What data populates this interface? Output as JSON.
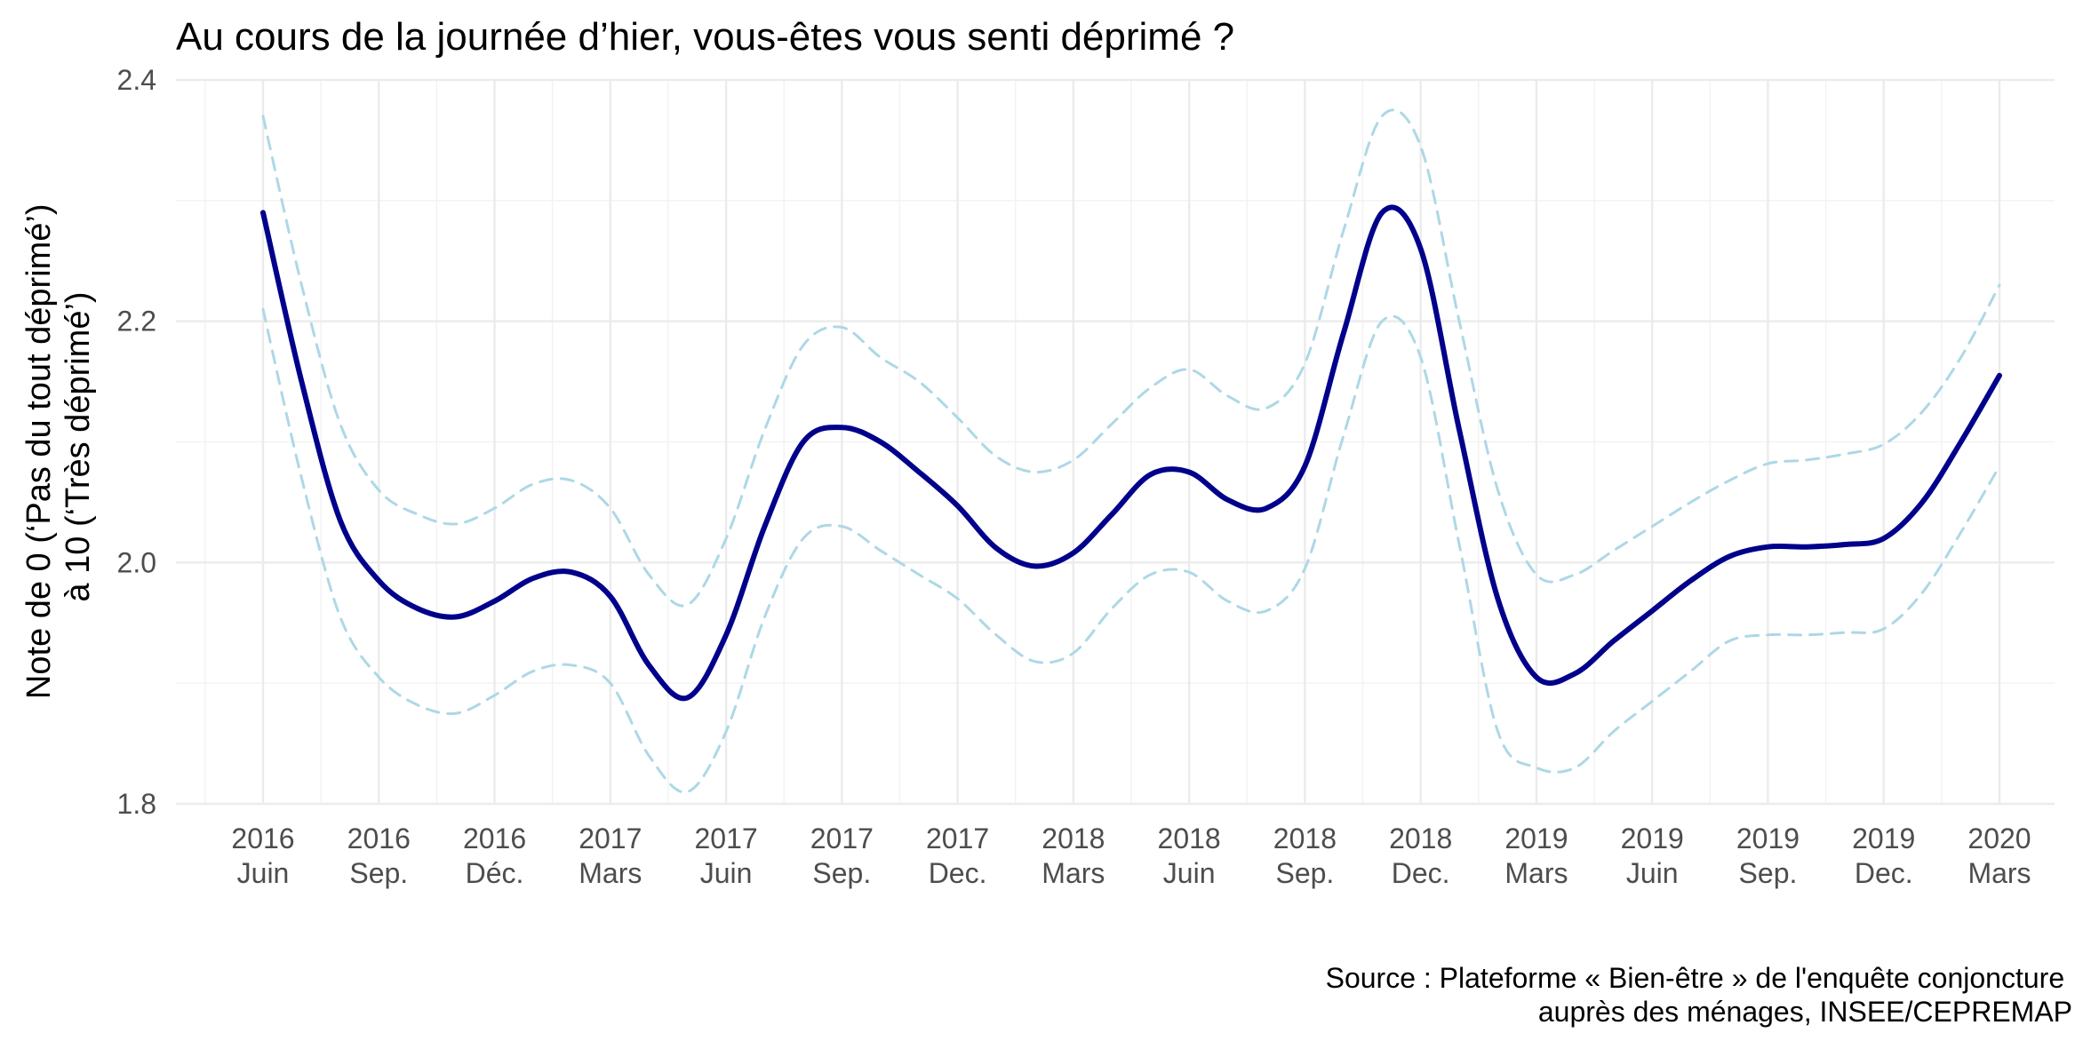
{
  "chart_data": {
    "type": "line",
    "title": "Au cours de la journée d’hier, vous-êtes vous senti déprimé ?",
    "ylabel_lines": [
      "Note de 0 (‘Pas du tout déprimé’)",
      "à 10 (‘Très déprimé’)"
    ],
    "ylim": [
      1.8,
      2.4
    ],
    "yticks": [
      1.8,
      2.0,
      2.2,
      2.4
    ],
    "ytick_labels": [
      "1.8",
      "2.0",
      "2.2",
      "2.4"
    ],
    "x_range": [
      "2016-06",
      "2020-03"
    ],
    "xticks": [
      {
        "year": "2016",
        "month": "Juin"
      },
      {
        "year": "2016",
        "month": "Sep."
      },
      {
        "year": "2016",
        "month": "Déc."
      },
      {
        "year": "2017",
        "month": "Mars"
      },
      {
        "year": "2017",
        "month": "Juin"
      },
      {
        "year": "2017",
        "month": "Sep."
      },
      {
        "year": "2017",
        "month": "Dec."
      },
      {
        "year": "2018",
        "month": "Mars"
      },
      {
        "year": "2018",
        "month": "Juin"
      },
      {
        "year": "2018",
        "month": "Sep."
      },
      {
        "year": "2018",
        "month": "Dec."
      },
      {
        "year": "2019",
        "month": "Mars"
      },
      {
        "year": "2019",
        "month": "Juin"
      },
      {
        "year": "2019",
        "month": "Sep."
      },
      {
        "year": "2019",
        "month": "Dec."
      },
      {
        "year": "2020",
        "month": "Mars"
      }
    ],
    "grid": true,
    "series": [
      {
        "role": "estimate",
        "color": "#00008b",
        "style": "solid",
        "x": [
          "2016-06",
          "2016-07",
          "2016-08",
          "2016-09",
          "2016-10",
          "2016-11",
          "2016-12",
          "2017-01",
          "2017-02",
          "2017-03",
          "2017-04",
          "2017-05",
          "2017-06",
          "2017-07",
          "2017-08",
          "2017-09",
          "2017-10",
          "2017-11",
          "2017-12",
          "2018-01",
          "2018-02",
          "2018-03",
          "2018-04",
          "2018-05",
          "2018-06",
          "2018-07",
          "2018-08",
          "2018-09",
          "2018-10",
          "2018-11",
          "2018-12",
          "2019-01",
          "2019-02",
          "2019-03",
          "2019-04",
          "2019-05",
          "2019-06",
          "2019-07",
          "2019-08",
          "2019-09",
          "2019-10",
          "2019-11",
          "2019-12",
          "2020-01",
          "2020-02",
          "2020-03"
        ],
        "y": [
          2.29,
          2.15,
          2.035,
          1.985,
          1.962,
          1.955,
          1.968,
          1.987,
          1.992,
          1.972,
          1.915,
          1.888,
          1.94,
          2.03,
          2.1,
          2.112,
          2.1,
          2.075,
          2.047,
          2.012,
          1.997,
          2.008,
          2.04,
          2.073,
          2.075,
          2.052,
          2.045,
          2.08,
          2.19,
          2.29,
          2.26,
          2.11,
          1.97,
          1.905,
          1.908,
          1.935,
          1.96,
          1.985,
          2.005,
          2.013,
          2.013,
          2.015,
          2.02,
          2.05,
          2.1,
          2.155
        ]
      },
      {
        "role": "upper-bound",
        "color": "#add8e6",
        "style": "dashed",
        "x": [
          "2016-06",
          "2016-07",
          "2016-08",
          "2016-09",
          "2016-10",
          "2016-11",
          "2016-12",
          "2017-01",
          "2017-02",
          "2017-03",
          "2017-04",
          "2017-05",
          "2017-06",
          "2017-07",
          "2017-08",
          "2017-09",
          "2017-10",
          "2017-11",
          "2017-12",
          "2018-01",
          "2018-02",
          "2018-03",
          "2018-04",
          "2018-05",
          "2018-06",
          "2018-07",
          "2018-08",
          "2018-09",
          "2018-10",
          "2018-11",
          "2018-12",
          "2019-01",
          "2019-02",
          "2019-03",
          "2019-04",
          "2019-05",
          "2019-06",
          "2019-07",
          "2019-08",
          "2019-09",
          "2019-10",
          "2019-11",
          "2019-12",
          "2020-01",
          "2020-02",
          "2020-03"
        ],
        "y": [
          2.37,
          2.23,
          2.115,
          2.06,
          2.04,
          2.032,
          2.045,
          2.065,
          2.068,
          2.045,
          1.99,
          1.965,
          2.02,
          2.11,
          2.18,
          2.195,
          2.17,
          2.15,
          2.12,
          2.088,
          2.075,
          2.085,
          2.115,
          2.145,
          2.16,
          2.138,
          2.128,
          2.165,
          2.275,
          2.37,
          2.345,
          2.2,
          2.06,
          1.99,
          1.99,
          2.01,
          2.03,
          2.05,
          2.068,
          2.082,
          2.085,
          2.09,
          2.098,
          2.125,
          2.17,
          2.23
        ]
      },
      {
        "role": "lower-bound",
        "color": "#add8e6",
        "style": "dashed",
        "x": [
          "2016-06",
          "2016-07",
          "2016-08",
          "2016-09",
          "2016-10",
          "2016-11",
          "2016-12",
          "2017-01",
          "2017-02",
          "2017-03",
          "2017-04",
          "2017-05",
          "2017-06",
          "2017-07",
          "2017-08",
          "2017-09",
          "2017-10",
          "2017-11",
          "2017-12",
          "2018-01",
          "2018-02",
          "2018-03",
          "2018-04",
          "2018-05",
          "2018-06",
          "2018-07",
          "2018-08",
          "2018-09",
          "2018-10",
          "2018-11",
          "2018-12",
          "2019-01",
          "2019-02",
          "2019-03",
          "2019-04",
          "2019-05",
          "2019-06",
          "2019-07",
          "2019-08",
          "2019-09",
          "2019-10",
          "2019-11",
          "2019-12",
          "2020-01",
          "2020-02",
          "2020-03"
        ],
        "y": [
          2.21,
          2.07,
          1.955,
          1.905,
          1.882,
          1.875,
          1.89,
          1.91,
          1.915,
          1.9,
          1.84,
          1.81,
          1.86,
          1.955,
          2.02,
          2.03,
          2.01,
          1.99,
          1.97,
          1.94,
          1.918,
          1.925,
          1.962,
          1.99,
          1.992,
          1.968,
          1.96,
          1.995,
          2.105,
          2.2,
          2.17,
          2.015,
          1.86,
          1.83,
          1.83,
          1.86,
          1.885,
          1.91,
          1.935,
          1.94,
          1.94,
          1.942,
          1.945,
          1.975,
          2.025,
          2.08
        ]
      }
    ],
    "caption_lines": [
      "Source : Plateforme « Bien-être » de l'enquête conjoncture",
      "auprès des ménages, INSEE/CEPREMAP"
    ]
  }
}
